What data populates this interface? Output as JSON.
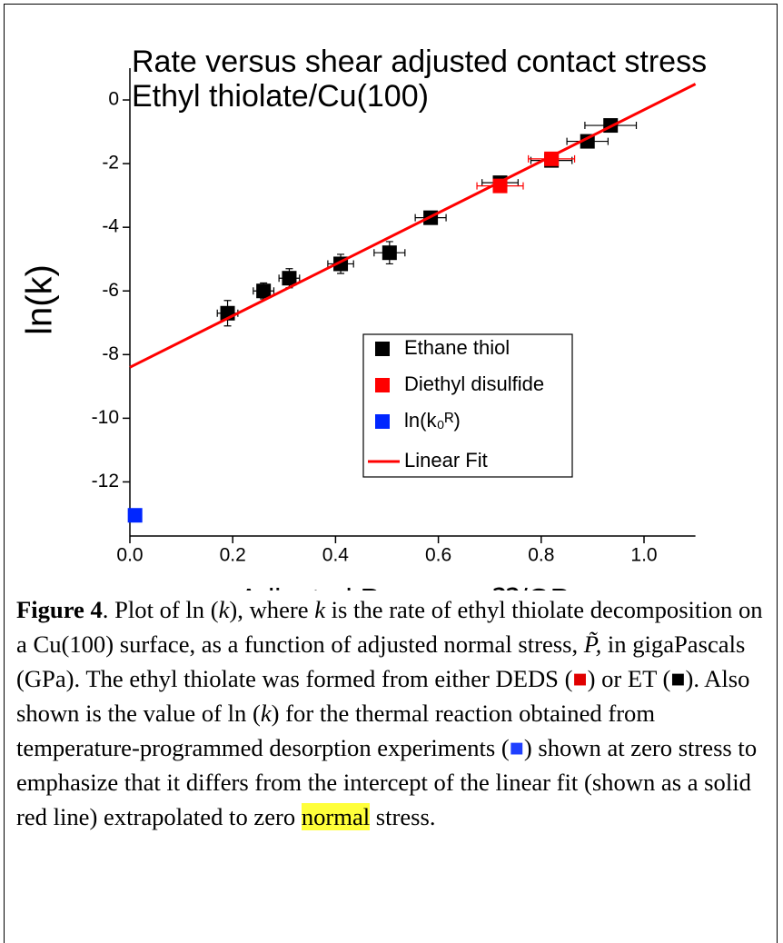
{
  "chart_data": {
    "type": "scatter",
    "title": "Rate versus shear adjusted contact stress",
    "subtitle": "Ethyl thiolate/Cu(100)",
    "x_label": "Adjusted Pressure, ⁇/GPa",
    "y_label": "ln(k)",
    "xlim": [
      0,
      1.1
    ],
    "ylim": [
      -13.7,
      1.0
    ],
    "xticks": [
      {
        "value": 0,
        "label": "0.0"
      },
      {
        "value": 0.2,
        "label": "0.2"
      },
      {
        "value": 0.4,
        "label": "0.4"
      },
      {
        "value": 0.6,
        "label": "0.6"
      },
      {
        "value": 0.8,
        "label": "0.8"
      },
      {
        "value": 1.0,
        "label": "1.0"
      }
    ],
    "yticks": [
      0,
      -2,
      -4,
      -6,
      -8,
      -10,
      -12
    ],
    "legend": "lower right",
    "series": [
      {
        "name": "Ethane thiol",
        "color": "#000000",
        "x": [
          0.19,
          0.26,
          0.31,
          0.41,
          0.505,
          0.585,
          0.72,
          0.82,
          0.89,
          0.935
        ],
        "values": [
          -6.7,
          -6.0,
          -5.6,
          -5.15,
          -4.8,
          -3.7,
          -2.6,
          -1.9,
          -1.3,
          -0.8
        ],
        "x_err": [
          0.02,
          0.02,
          0.02,
          0.025,
          0.03,
          0.03,
          0.035,
          0.04,
          0.04,
          0.05
        ],
        "y_err": [
          0.4,
          0.25,
          0.3,
          0.3,
          0.35,
          0.2,
          0.2,
          0.2,
          0.2,
          0.2
        ]
      },
      {
        "name": "Diethyl disulfide",
        "color": "#ff0000",
        "x": [
          0.72,
          0.82
        ],
        "values": [
          -2.7,
          -1.85
        ],
        "x_err": [
          0.045,
          0.045
        ],
        "y_err": [
          0.15,
          0.15
        ]
      },
      {
        "name": "ln(k₀ᴿ)",
        "color": "#0026ff",
        "x": [
          0.01
        ],
        "values": [
          -13.05
        ]
      },
      {
        "name": "Linear Fit",
        "color": "#ff0000",
        "kind": "line",
        "x": [
          0,
          1.1
        ],
        "values": [
          -8.4,
          0.5
        ]
      }
    ]
  },
  "caption": {
    "parts": [
      "Figure 4",
      ". Plot of ln (",
      "k",
      "), where ",
      "k",
      " is the rate of ethyl thiolate decomposition on a Cu(100) surface, as a function of adjusted normal stress, ",
      "P̃,",
      " in gigaPascals (GPa). The ethyl thiolate was formed from either DEDS (",
      "■",
      ")  or ET (",
      "■",
      "). Also shown is the value of ln (",
      "k",
      ") for the thermal reaction obtained from temperature-programmed desorption experiments (",
      "■",
      ") shown at zero stress to emphasize that it differs from the intercept of the linear fit (shown as a solid red line) extrapolated to zero ",
      "normal",
      " stress."
    ]
  }
}
